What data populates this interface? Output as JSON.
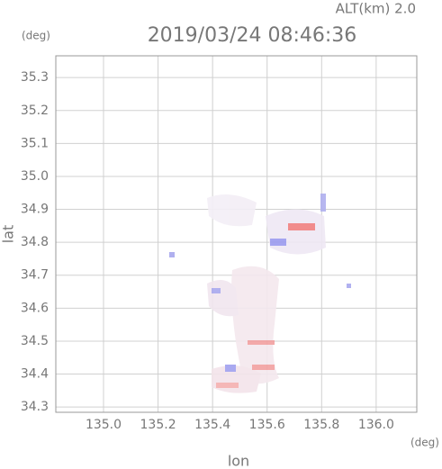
{
  "chart_data": {
    "type": "map",
    "title": "2019/03/24 08:46:36",
    "subtitle": "ALT(km) 2.0",
    "x_label": "lon",
    "y_label": "lat",
    "x_unit": "(deg)",
    "y_unit": "(deg)",
    "xlim": [
      134.825,
      136.149
    ],
    "ylim": [
      34.284,
      35.366
    ],
    "xticks": [
      {
        "value": 135,
        "label": "135.0"
      },
      135.2,
      135.4,
      135.6,
      135.8,
      {
        "value": 136,
        "label": "136.0"
      }
    ],
    "yticks": [
      34.3,
      34.4,
      34.5,
      34.6,
      34.7,
      34.8,
      34.9,
      {
        "value": 35,
        "label": "35.0"
      },
      35.1,
      35.2,
      35.3
    ],
    "grid": true
  }
}
